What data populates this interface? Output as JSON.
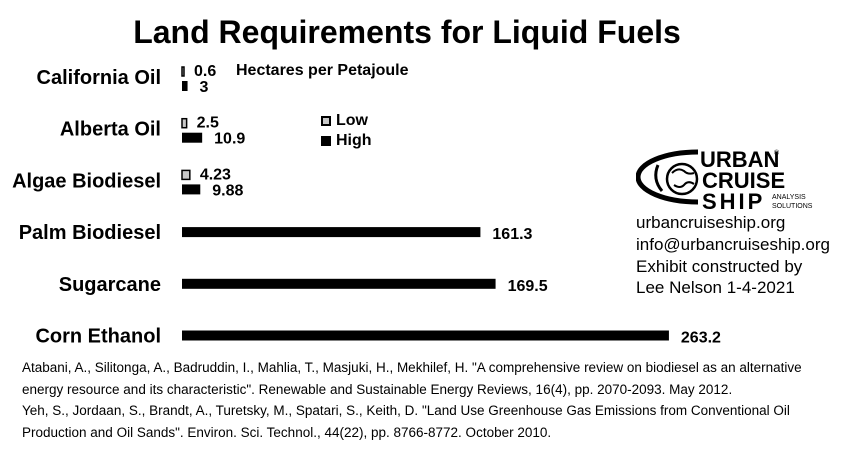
{
  "chart_data": {
    "type": "bar",
    "orientation": "horizontal",
    "title": "Land Requirements for Liquid Fuels",
    "units_label": "Hectares per Petajoule",
    "categories": [
      "California Oil",
      "Alberta Oil",
      "Algae Biodiesel",
      "Palm Biodiesel",
      "Sugarcane",
      "Corn Ethanol"
    ],
    "series": [
      {
        "name": "Low",
        "color": "#c8c8c8",
        "values": [
          0.6,
          2.5,
          4.23,
          null,
          null,
          null
        ]
      },
      {
        "name": "High",
        "color": "#000000",
        "values": [
          3,
          10.9,
          9.88,
          161.3,
          169.5,
          263.2
        ]
      }
    ],
    "value_labels": {
      "Low": [
        "0.6",
        "2.5",
        "4.23",
        "",
        "",
        ""
      ],
      "High": [
        "3",
        "10.9",
        "9.88",
        "161.3",
        "169.5",
        "263.2"
      ]
    },
    "legend": [
      "Low",
      "High"
    ],
    "legend_position": "center",
    "grid": false
  },
  "logo": {
    "line1": "URBAN",
    "line2": "CRUISE",
    "line3": "SHIP",
    "tag1": "ANALYSIS",
    "tag2": "SOLUTIONS",
    "reg": "®"
  },
  "contact": {
    "website": "urbancruiseship.org",
    "email": "info@urbancruiseship.org",
    "credit_line1": "Exhibit constructed by",
    "credit_line2": "Lee Nelson 1-4-2021"
  },
  "references": [
    "Atabani, A., Silitonga, A., Badruddin, I., Mahlia, T., Masjuki, H., Mekhilef, H. \"A comprehensive review on biodiesel as an alternative energy resource and its characteristic\". Renewable and Sustainable Energy Reviews, 16(4), pp. 2070-2093. May 2012.",
    "Yeh, S., Jordaan, S., Brandt, A., Turetsky, M., Spatari, S., Keith, D. \"Land Use Greenhouse Gas Emissions from Conventional Oil Production and Oil Sands\". Environ. Sci. Technol., 44(22), pp. 8766-8772. October 2010."
  ]
}
